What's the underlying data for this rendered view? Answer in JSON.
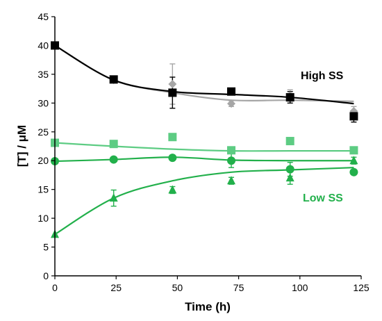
{
  "chart_data": {
    "type": "scatter",
    "title": "",
    "xlabel": "Time (h)",
    "ylabel": "[T] / μM",
    "xlim": [
      0,
      125
    ],
    "ylim": [
      0,
      45
    ],
    "xticks": [
      0,
      25,
      50,
      75,
      100,
      125
    ],
    "yticks": [
      0,
      5,
      10,
      15,
      20,
      25,
      30,
      35,
      40,
      45
    ],
    "grid": false,
    "legend": "none",
    "annotations": [
      {
        "text": "High SS",
        "color": "#000000"
      },
      {
        "text": "Low SS",
        "color": "#22b04b"
      }
    ],
    "series": [
      {
        "marker": "diamond",
        "color": "#a6a6a6",
        "x": [
          0,
          24,
          48,
          72,
          96,
          122
        ],
        "y": [
          40.0,
          34.0,
          33.3,
          29.9,
          31.3,
          28.6
        ],
        "err": [
          0,
          0.5,
          3.5,
          0.5,
          1.0,
          0.8
        ],
        "fit_x": [
          0,
          24,
          48,
          72,
          96,
          122
        ],
        "fit_y": [
          40.0,
          34.0,
          31.8,
          30.5,
          30.5,
          30.3
        ]
      },
      {
        "marker": "square",
        "color": "#000000",
        "x": [
          0,
          24,
          48,
          72,
          96,
          122
        ],
        "y": [
          40.0,
          34.1,
          31.8,
          32.0,
          31.0,
          27.7
        ],
        "err": [
          0,
          0.5,
          2.7,
          0.5,
          1.0,
          1.0
        ],
        "fit_x": [
          0,
          24,
          48,
          72,
          96,
          122
        ],
        "fit_y": [
          40.0,
          34.0,
          32.0,
          31.5,
          31.0,
          29.9
        ]
      },
      {
        "marker": "square",
        "color": "#5dcc83",
        "x": [
          0,
          24,
          48,
          72,
          96,
          122
        ],
        "y": [
          23.1,
          22.9,
          24.1,
          21.8,
          23.4,
          21.8
        ],
        "err": [
          0,
          0.4,
          0.4,
          0.4,
          0.4,
          0.4
        ],
        "fit_x": [
          0,
          24,
          48,
          72,
          96,
          122
        ],
        "fit_y": [
          23.1,
          22.5,
          22.0,
          21.7,
          21.7,
          21.7
        ]
      },
      {
        "marker": "circle",
        "color": "#22b04b",
        "x": [
          0,
          24,
          48,
          72,
          96,
          122
        ],
        "y": [
          19.9,
          20.2,
          20.5,
          20.0,
          18.5,
          18.0
        ],
        "err": [
          0,
          0.4,
          0.4,
          1.2,
          1.2,
          0.4
        ],
        "fit_x": [
          0,
          24,
          48,
          72,
          96,
          122
        ],
        "fit_y": [
          19.9,
          20.2,
          20.6,
          20.1,
          20.0,
          20.0
        ]
      },
      {
        "marker": "triangle",
        "color": "#22b04b",
        "x": [
          0,
          24,
          48,
          72,
          96,
          122
        ],
        "y": [
          7.2,
          13.5,
          14.9,
          16.5,
          17.0,
          20.0
        ],
        "err": [
          0,
          1.4,
          0.6,
          0.6,
          1.1,
          0.6
        ],
        "fit_x": [
          0,
          24,
          48,
          72,
          96,
          122
        ],
        "fit_y": [
          7.2,
          13.5,
          16.5,
          18.0,
          18.4,
          18.8
        ]
      }
    ]
  }
}
